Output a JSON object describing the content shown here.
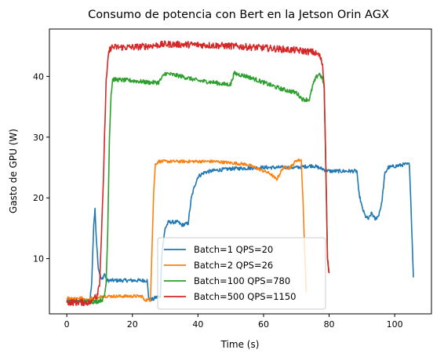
{
  "chart_data": {
    "type": "line",
    "title": "Consumo de potencia con Bert en la Jetson Orin AGX",
    "xlabel": "Time (s)",
    "ylabel": "Gasto de GPU (W)",
    "xlim": [
      -5.3,
      111.2
    ],
    "ylim": [
      0.9,
      47.8
    ],
    "xticks": [
      0,
      20,
      40,
      60,
      80,
      100
    ],
    "yticks": [
      10,
      20,
      30,
      40
    ],
    "grid": false,
    "legend_position": "lower-center",
    "series": [
      {
        "name": "Batch=1 QPS=20",
        "color": "#1f77b4",
        "noise": 0.3,
        "points": [
          [
            0,
            3.0
          ],
          [
            7.0,
            3.0
          ],
          [
            7.6,
            6.0
          ],
          [
            8.2,
            15.5
          ],
          [
            8.6,
            18.0
          ],
          [
            9.0,
            13.5
          ],
          [
            9.6,
            8.5
          ],
          [
            10.6,
            6.4
          ],
          [
            11.5,
            7.5
          ],
          [
            12.2,
            6.4
          ],
          [
            20.0,
            6.4
          ],
          [
            24.5,
            6.4
          ],
          [
            25.0,
            3.3
          ],
          [
            26.5,
            3.3
          ],
          [
            27.0,
            3.6
          ],
          [
            28.5,
            3.7
          ],
          [
            29.0,
            11.0
          ],
          [
            30.0,
            15.0
          ],
          [
            31.0,
            16.0
          ],
          [
            34.0,
            16.0
          ],
          [
            35.0,
            15.5
          ],
          [
            37.0,
            15.8
          ],
          [
            38.0,
            20.0
          ],
          [
            39.0,
            22.0
          ],
          [
            40.0,
            23.5
          ],
          [
            42.0,
            24.2
          ],
          [
            45.0,
            24.5
          ],
          [
            50.0,
            24.8
          ],
          [
            60.0,
            25.0
          ],
          [
            70.0,
            25.0
          ],
          [
            75.0,
            25.3
          ],
          [
            80.0,
            24.4
          ],
          [
            85.0,
            24.4
          ],
          [
            88.5,
            24.4
          ],
          [
            89.0,
            21.0
          ],
          [
            90.0,
            18.5
          ],
          [
            91.0,
            17.0
          ],
          [
            92.0,
            16.5
          ],
          [
            93.0,
            17.5
          ],
          [
            94.0,
            16.5
          ],
          [
            95.0,
            17.0
          ],
          [
            96.0,
            19.0
          ],
          [
            97.0,
            24.0
          ],
          [
            98.0,
            25.0
          ],
          [
            100.0,
            25.2
          ],
          [
            103.0,
            25.5
          ],
          [
            104.5,
            25.5
          ],
          [
            105.0,
            18.0
          ],
          [
            105.5,
            10.0
          ],
          [
            105.7,
            6.9
          ]
        ]
      },
      {
        "name": "Batch=2 QPS=26",
        "color": "#ff7f0e",
        "noise": 0.25,
        "points": [
          [
            0,
            3.5
          ],
          [
            5.0,
            3.5
          ],
          [
            5.5,
            3.2
          ],
          [
            7.0,
            3.2
          ],
          [
            7.5,
            3.5
          ],
          [
            10.0,
            3.5
          ],
          [
            10.5,
            3.8
          ],
          [
            20.0,
            3.8
          ],
          [
            23.0,
            3.8
          ],
          [
            23.5,
            3.2
          ],
          [
            25.5,
            3.2
          ],
          [
            26.0,
            12.0
          ],
          [
            26.5,
            21.0
          ],
          [
            27.0,
            25.5
          ],
          [
            28.0,
            26.0
          ],
          [
            45.0,
            26.0
          ],
          [
            55.0,
            25.5
          ],
          [
            62.0,
            24.0
          ],
          [
            64.0,
            23.0
          ],
          [
            65.0,
            24.0
          ],
          [
            66.0,
            25.0
          ],
          [
            68.0,
            25.0
          ],
          [
            69.0,
            25.5
          ],
          [
            70.0,
            26.2
          ],
          [
            71.5,
            26.2
          ],
          [
            72.0,
            20.0
          ],
          [
            72.5,
            12.0
          ],
          [
            73.0,
            4.5
          ]
        ]
      },
      {
        "name": "Batch=100 QPS=780",
        "color": "#2ca02c",
        "noise": 0.35,
        "points": [
          [
            0,
            2.9
          ],
          [
            9.0,
            2.9
          ],
          [
            10.0,
            3.1
          ],
          [
            11.0,
            3.3
          ],
          [
            11.5,
            4.0
          ],
          [
            12.0,
            6.0
          ],
          [
            12.5,
            15.0
          ],
          [
            13.0,
            30.0
          ],
          [
            13.5,
            37.0
          ],
          [
            14.0,
            39.5
          ],
          [
            20.0,
            39.3
          ],
          [
            25.0,
            39.0
          ],
          [
            28.0,
            39.0
          ],
          [
            30.0,
            40.5
          ],
          [
            35.0,
            40.0
          ],
          [
            40.0,
            39.3
          ],
          [
            45.0,
            39.0
          ],
          [
            48.0,
            38.7
          ],
          [
            50.0,
            38.7
          ],
          [
            51.0,
            40.5
          ],
          [
            55.0,
            40.0
          ],
          [
            60.0,
            39.0
          ],
          [
            65.0,
            38.0
          ],
          [
            70.0,
            37.3
          ],
          [
            72.0,
            36.2
          ],
          [
            74.0,
            36.2
          ],
          [
            75.0,
            38.5
          ],
          [
            76.0,
            39.8
          ],
          [
            77.0,
            40.5
          ],
          [
            78.0,
            39.5
          ],
          [
            78.5,
            38.5
          ],
          [
            79.0,
            25.0
          ],
          [
            79.5,
            10.0
          ],
          [
            80.0,
            7.6
          ]
        ]
      },
      {
        "name": "Batch=500 QPS=1150",
        "color": "#d62728",
        "noise": 0.55,
        "points": [
          [
            0,
            2.8
          ],
          [
            7.5,
            2.8
          ],
          [
            8.0,
            3.2
          ],
          [
            8.5,
            4.3
          ],
          [
            9.0,
            3.5
          ],
          [
            10.0,
            6.0
          ],
          [
            11.0,
            20.0
          ],
          [
            11.5,
            30.0
          ],
          [
            12.0,
            39.0
          ],
          [
            12.8,
            44.0
          ],
          [
            13.5,
            44.8
          ],
          [
            20.0,
            44.8
          ],
          [
            25.0,
            45.0
          ],
          [
            30.0,
            45.3
          ],
          [
            40.0,
            45.2
          ],
          [
            50.0,
            45.0
          ],
          [
            60.0,
            44.7
          ],
          [
            70.0,
            44.3
          ],
          [
            75.0,
            44.0
          ],
          [
            77.0,
            43.5
          ],
          [
            78.0,
            42.0
          ],
          [
            78.5,
            38.0
          ],
          [
            79.0,
            25.0
          ],
          [
            79.5,
            10.0
          ],
          [
            80.0,
            7.6
          ]
        ]
      }
    ]
  }
}
